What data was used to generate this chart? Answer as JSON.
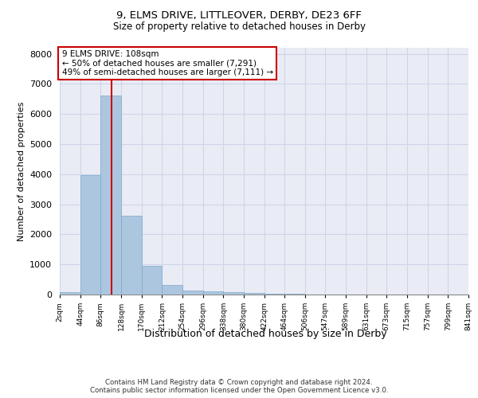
{
  "title1": "9, ELMS DRIVE, LITTLEOVER, DERBY, DE23 6FF",
  "title2": "Size of property relative to detached houses in Derby",
  "xlabel": "Distribution of detached houses by size in Derby",
  "ylabel": "Number of detached properties",
  "footer1": "Contains HM Land Registry data © Crown copyright and database right 2024.",
  "footer2": "Contains public sector information licensed under the Open Government Licence v3.0.",
  "bin_edges": [
    2,
    44,
    86,
    128,
    170,
    212,
    254,
    296,
    338,
    380,
    422,
    464,
    506,
    547,
    589,
    631,
    673,
    715,
    757,
    799,
    841
  ],
  "bin_counts": [
    80,
    3980,
    6610,
    2620,
    950,
    305,
    125,
    105,
    80,
    55,
    30,
    15,
    8,
    4,
    2,
    2,
    1,
    1,
    1,
    1
  ],
  "bar_color": "#adc6e0",
  "bar_edgecolor": "#7aaac8",
  "grid_color": "#d0d4e8",
  "background_color": "#eaecf5",
  "red_line_x": 108,
  "annotation_text": "9 ELMS DRIVE: 108sqm\n← 50% of detached houses are smaller (7,291)\n49% of semi-detached houses are larger (7,111) →",
  "annotation_box_color": "#cc0000",
  "ylim": [
    0,
    8200
  ],
  "yticks": [
    0,
    1000,
    2000,
    3000,
    4000,
    5000,
    6000,
    7000,
    8000
  ]
}
